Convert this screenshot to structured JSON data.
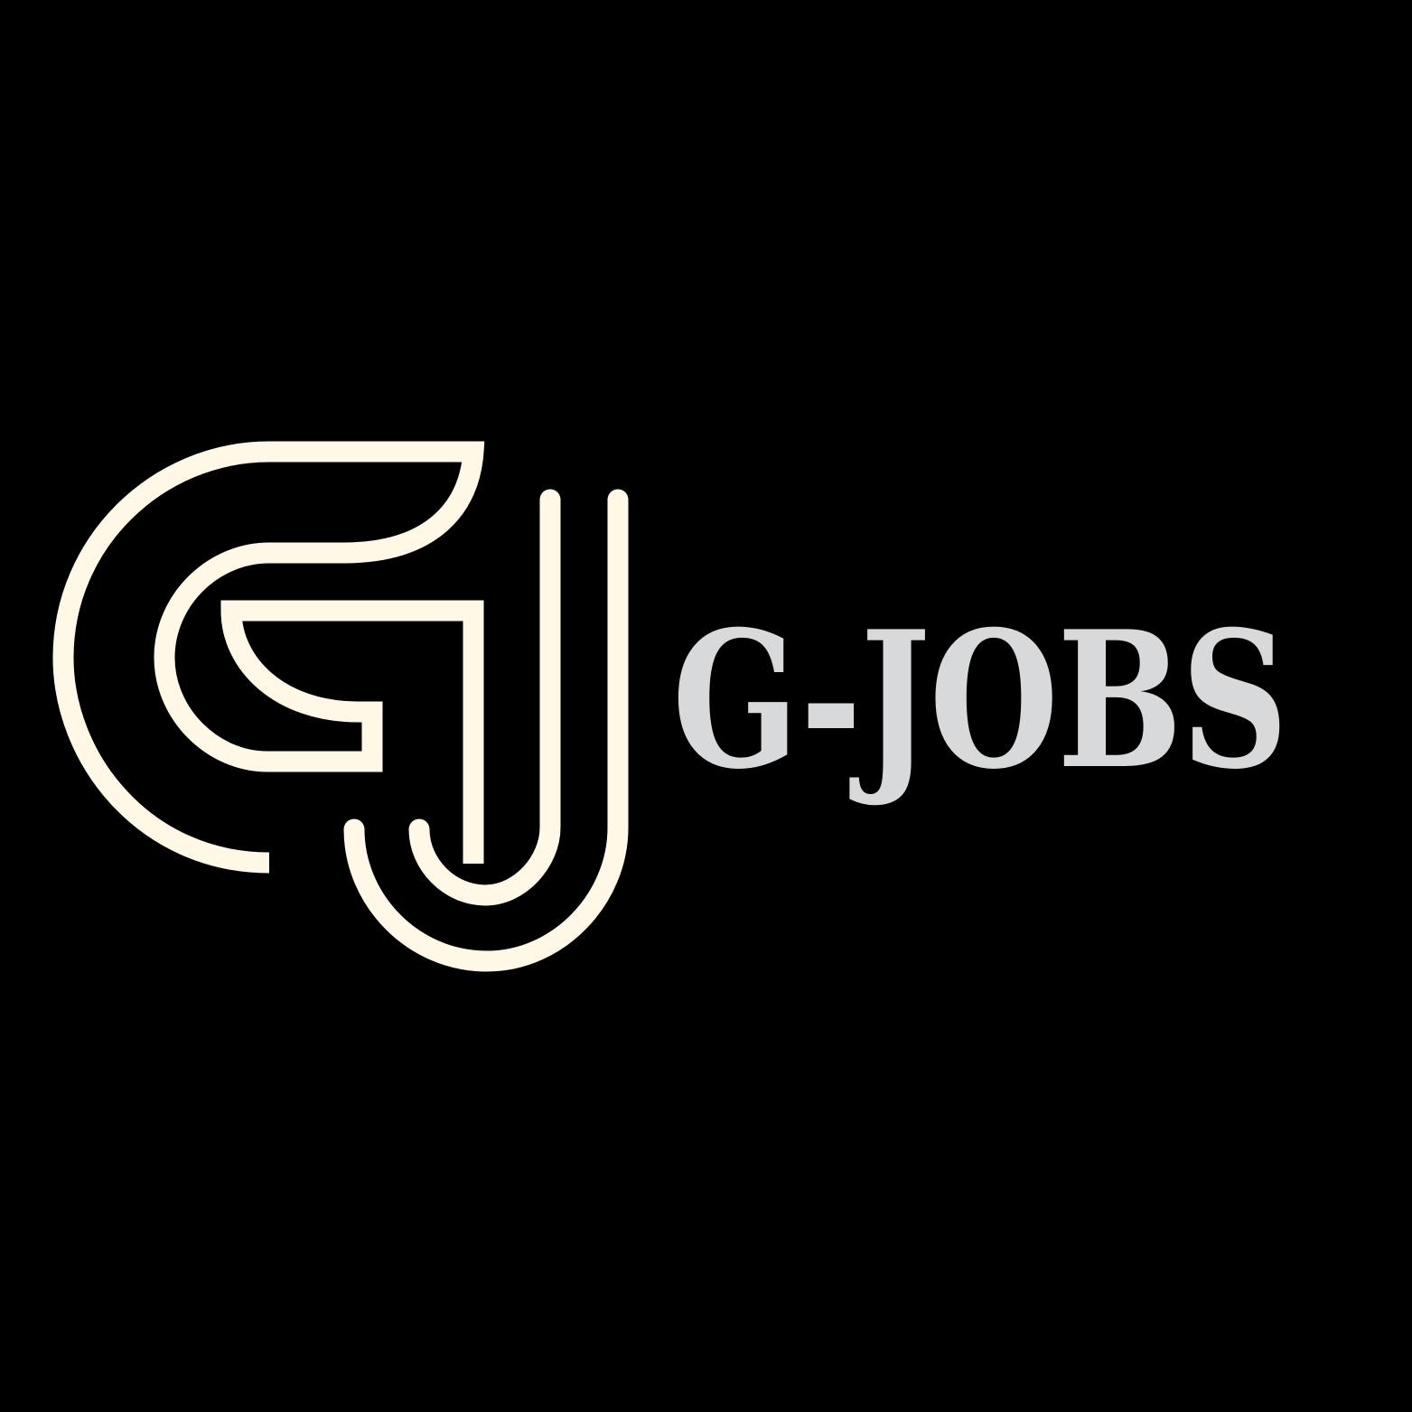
{
  "brand": {
    "name": "G-JOBS",
    "logo_icon": "gj-monogram-icon"
  },
  "colors": {
    "background": "#000000",
    "mark": "#fff8e6",
    "wordmark": "#d8d9db"
  }
}
